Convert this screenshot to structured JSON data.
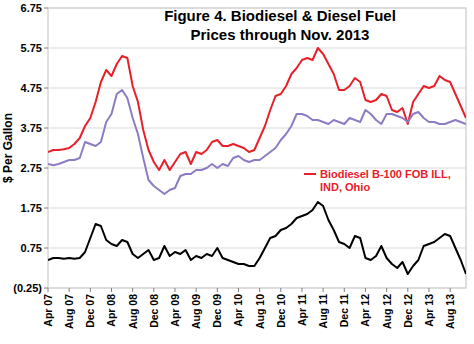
{
  "chart_data": {
    "type": "line",
    "title": "Figure 4. Biodiesel & Diesel Fuel Prices through Nov. 2013",
    "y_label": "$ Per Gallon",
    "categories": [
      "Apr 07",
      null,
      null,
      null,
      "Aug 07",
      null,
      null,
      null,
      "Dec 07",
      null,
      null,
      null,
      "Apr 08",
      null,
      null,
      null,
      "Aug 08",
      null,
      null,
      null,
      "Dec 08",
      null,
      null,
      null,
      "Apr 09",
      null,
      null,
      null,
      "Aug 09",
      null,
      null,
      null,
      "Dec 09",
      null,
      null,
      null,
      "Apr 10",
      null,
      null,
      null,
      "Aug 10",
      null,
      null,
      null,
      "Dec 10",
      null,
      null,
      null,
      "Apr 11",
      null,
      null,
      null,
      "Aug 11",
      null,
      null,
      null,
      "Dec 11",
      null,
      null,
      null,
      "Apr 12",
      null,
      null,
      null,
      "Aug 12",
      null,
      null,
      null,
      "Dec 12",
      null,
      null,
      null,
      "Apr 13",
      null,
      null,
      null,
      "Aug 13",
      null,
      null,
      null
    ],
    "series": [
      {
        "name": "Biodiesel B-100 FOB ILL, IND, Ohio",
        "color": "#e8202a",
        "values": [
          3.15,
          3.2,
          3.2,
          3.22,
          3.25,
          3.35,
          3.5,
          3.8,
          4.0,
          4.4,
          4.9,
          5.2,
          5.05,
          5.35,
          5.55,
          5.5,
          4.8,
          4.4,
          3.7,
          3.2,
          2.9,
          2.7,
          2.95,
          2.7,
          2.9,
          3.1,
          3.15,
          2.85,
          3.15,
          3.1,
          3.2,
          3.4,
          3.45,
          3.3,
          3.3,
          3.35,
          3.3,
          3.25,
          3.15,
          3.2,
          3.5,
          3.8,
          4.2,
          4.55,
          4.6,
          4.8,
          5.1,
          5.25,
          5.45,
          5.5,
          5.45,
          5.75,
          5.6,
          5.35,
          5.1,
          4.7,
          4.7,
          4.8,
          5.0,
          4.9,
          4.45,
          4.4,
          4.45,
          4.6,
          4.55,
          4.2,
          4.15,
          4.25,
          3.85,
          4.4,
          4.6,
          4.8,
          4.75,
          4.8,
          5.05,
          4.95,
          4.9,
          4.6,
          4.3,
          4.0
        ]
      },
      {
        "color": "#8e7cc3",
        "values": [
          2.85,
          2.82,
          2.85,
          2.9,
          2.95,
          2.95,
          3.0,
          3.4,
          3.35,
          3.3,
          3.4,
          3.9,
          4.1,
          4.6,
          4.7,
          4.5,
          4.0,
          3.6,
          3.0,
          2.45,
          2.3,
          2.2,
          2.1,
          2.2,
          2.25,
          2.55,
          2.6,
          2.6,
          2.7,
          2.7,
          2.75,
          2.85,
          2.75,
          2.85,
          2.8,
          3.0,
          3.05,
          2.95,
          2.9,
          2.95,
          2.95,
          3.05,
          3.15,
          3.25,
          3.45,
          3.6,
          3.8,
          4.1,
          4.1,
          4.05,
          3.95,
          3.95,
          3.9,
          3.85,
          3.95,
          3.9,
          3.85,
          4.0,
          3.95,
          3.9,
          4.2,
          4.1,
          3.95,
          3.85,
          4.1,
          4.1,
          4.05,
          4.0,
          3.9,
          4.1,
          4.15,
          4.0,
          3.9,
          3.9,
          3.85,
          3.85,
          3.9,
          3.95,
          3.9,
          3.85
        ]
      },
      {
        "color": "#000000",
        "values": [
          0.45,
          0.5,
          0.5,
          0.48,
          0.5,
          0.48,
          0.5,
          0.65,
          1.0,
          1.35,
          1.3,
          0.95,
          0.85,
          0.8,
          0.95,
          0.9,
          0.6,
          0.5,
          0.6,
          0.7,
          0.45,
          0.5,
          0.8,
          0.55,
          0.65,
          0.6,
          0.7,
          0.45,
          0.55,
          0.5,
          0.6,
          0.55,
          0.75,
          0.5,
          0.45,
          0.4,
          0.35,
          0.35,
          0.3,
          0.3,
          0.5,
          0.75,
          1.0,
          1.05,
          1.2,
          1.25,
          1.35,
          1.5,
          1.55,
          1.6,
          1.7,
          1.9,
          1.8,
          1.45,
          1.2,
          0.9,
          0.85,
          0.75,
          1.05,
          1.0,
          0.5,
          0.45,
          0.55,
          0.8,
          0.5,
          0.35,
          0.25,
          0.4,
          0.1,
          0.3,
          0.45,
          0.8,
          0.85,
          0.9,
          1.0,
          1.1,
          1.05,
          0.75,
          0.45,
          0.1
        ]
      }
    ],
    "ylim": [
      -0.25,
      6.75
    ],
    "yticks": [
      {
        "value": -0.25,
        "label": "(0.25)"
      },
      0.75,
      1.75,
      2.75,
      3.75,
      4.75,
      5.75,
      6.75
    ],
    "grid": true,
    "legend": "right"
  }
}
